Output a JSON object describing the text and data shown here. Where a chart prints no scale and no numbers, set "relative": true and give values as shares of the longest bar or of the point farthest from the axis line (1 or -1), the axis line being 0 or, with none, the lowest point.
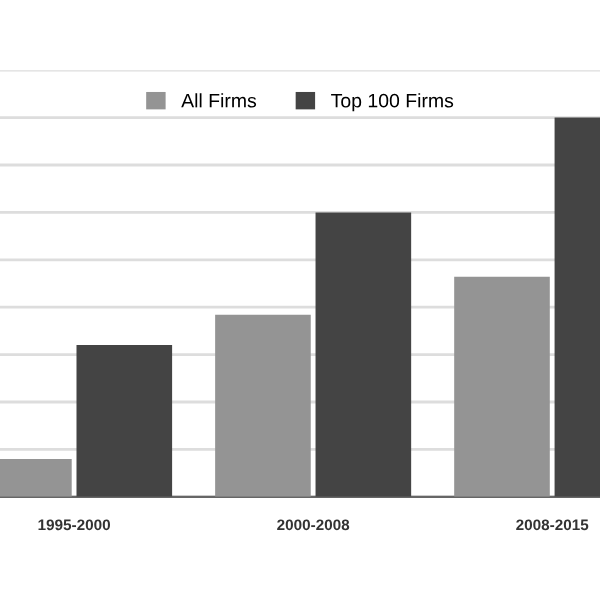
{
  "chart_data": {
    "type": "bar",
    "relative": true,
    "categories": [
      "1995-2000",
      "2000-2008",
      "2008-2015"
    ],
    "series": [
      {
        "name": "All Firms",
        "color": "#949494",
        "values": [
          0.1,
          0.48,
          0.58
        ]
      },
      {
        "name": "Top 100 Firms",
        "color": "#444444",
        "values": [
          0.4,
          0.75,
          1.0
        ]
      }
    ],
    "grid": "y",
    "legend": "top"
  }
}
